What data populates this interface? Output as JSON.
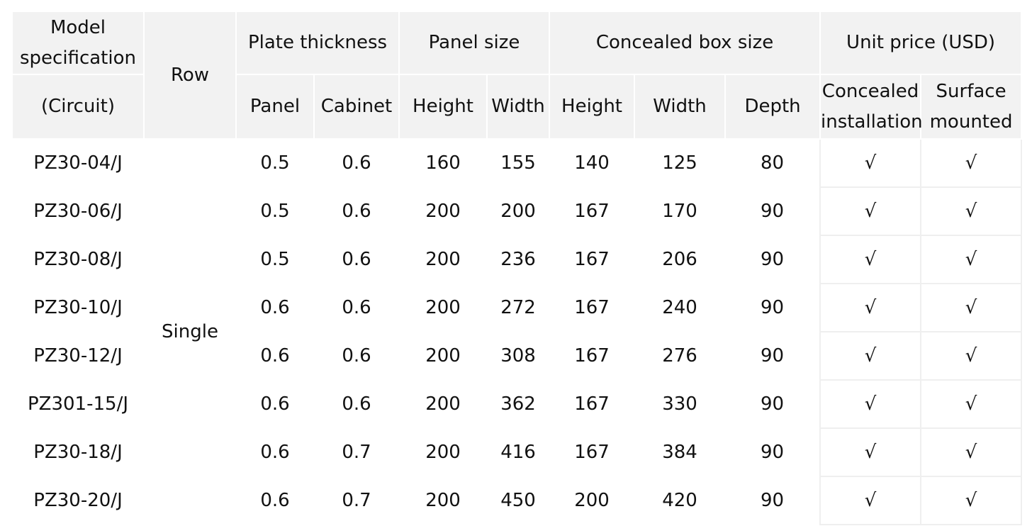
{
  "header": {
    "model_line1": "Model",
    "model_line2": "specification",
    "model_line3": "(Circuit)",
    "row": "Row",
    "plate_thickness": "Plate thickness",
    "panel_size": "Panel size",
    "concealed_box_size": "Concealed box size",
    "unit_price": "Unit price (USD)",
    "panel": "Panel",
    "cabinet": "Cabinet",
    "panel_height": "Height",
    "panel_width": "Width",
    "box_height": "Height",
    "box_width": "Width",
    "box_depth": "Depth",
    "concealed_line1": "Concealed",
    "concealed_line2": "installation",
    "surface_line1": "Surface",
    "surface_line2": "mounted"
  },
  "row_label": "Single",
  "rows": [
    {
      "model": "PZ30-04/J",
      "panel": "0.5",
      "cabinet": "0.6",
      "panel_height": "160",
      "panel_width": "155",
      "box_height": "140",
      "box_width": "125",
      "box_depth": "80",
      "concealed": "√",
      "surface": "√"
    },
    {
      "model": "PZ30-06/J",
      "panel": "0.5",
      "cabinet": "0.6",
      "panel_height": "200",
      "panel_width": "200",
      "box_height": "167",
      "box_width": "170",
      "box_depth": "90",
      "concealed": "√",
      "surface": "√"
    },
    {
      "model": "PZ30-08/J",
      "panel": "0.5",
      "cabinet": "0.6",
      "panel_height": "200",
      "panel_width": "236",
      "box_height": "167",
      "box_width": "206",
      "box_depth": "90",
      "concealed": "√",
      "surface": "√"
    },
    {
      "model": "PZ30-10/J",
      "panel": "0.6",
      "cabinet": "0.6",
      "panel_height": "200",
      "panel_width": "272",
      "box_height": "167",
      "box_width": "240",
      "box_depth": "90",
      "concealed": "√",
      "surface": "√"
    },
    {
      "model": "PZ30-12/J",
      "panel": "0.6",
      "cabinet": "0.6",
      "panel_height": "200",
      "panel_width": "308",
      "box_height": "167",
      "box_width": "276",
      "box_depth": "90",
      "concealed": "√",
      "surface": "√"
    },
    {
      "model": "PZ301-15/J",
      "panel": "0.6",
      "cabinet": "0.6",
      "panel_height": "200",
      "panel_width": "362",
      "box_height": "167",
      "box_width": "330",
      "box_depth": "90",
      "concealed": "√",
      "surface": "√"
    },
    {
      "model": "PZ30-18/J",
      "panel": "0.6",
      "cabinet": "0.7",
      "panel_height": "200",
      "panel_width": "416",
      "box_height": "167",
      "box_width": "384",
      "box_depth": "90",
      "concealed": "√",
      "surface": "√"
    },
    {
      "model": "PZ30-20/J",
      "panel": "0.6",
      "cabinet": "0.7",
      "panel_height": "200",
      "panel_width": "450",
      "box_height": "200",
      "box_width": "420",
      "box_depth": "90",
      "concealed": "√",
      "surface": "√"
    }
  ]
}
